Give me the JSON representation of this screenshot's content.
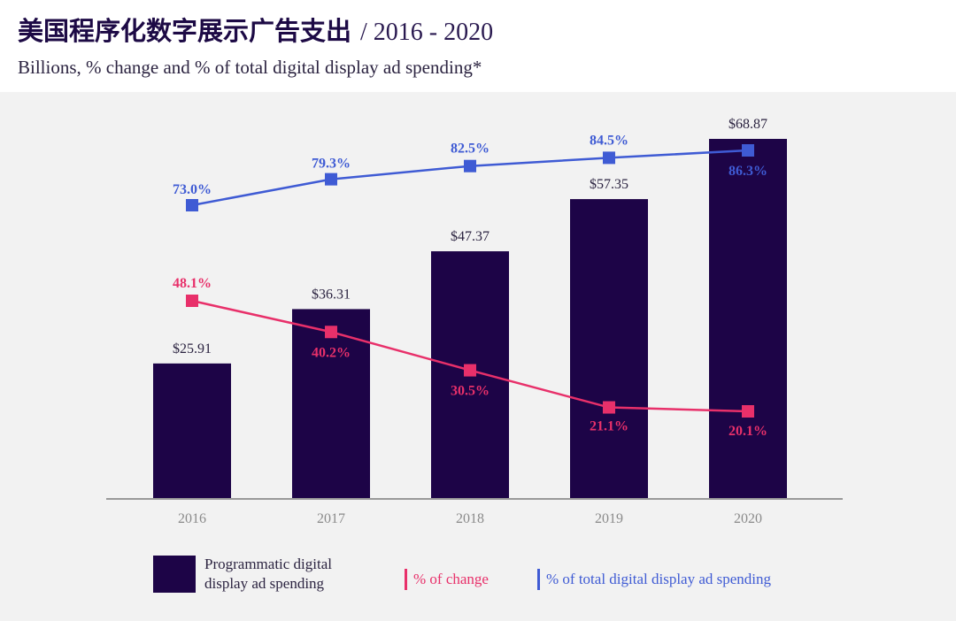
{
  "header": {
    "title": "美国程序化数字展示广告支出",
    "date_range": "/ 2016 - 2020",
    "subtitle": "Billions, % change and % of  total digital display ad spending*"
  },
  "colors": {
    "bar": "#1d0447",
    "change_line": "#e8306a",
    "share_line": "#3f5bd4",
    "axis": "#999999",
    "panel_bg": "#f2f2f2"
  },
  "legend": {
    "bars": "Programmatic digital display ad spending",
    "change": "% of change",
    "share": "% of total digital display ad spending"
  },
  "chart_data": {
    "type": "bar",
    "categories": [
      "2016",
      "2017",
      "2018",
      "2019",
      "2020"
    ],
    "bar_series": {
      "name": "Programmatic digital display ad spending",
      "values": [
        25.91,
        36.31,
        47.37,
        57.35,
        68.87
      ],
      "labels": [
        "$25.91",
        "$36.31",
        "$47.37",
        "$57.35",
        "$68.87"
      ]
    },
    "line_series": [
      {
        "name": "% of change",
        "values": [
          48.1,
          40.2,
          30.5,
          21.1,
          20.1
        ],
        "labels": [
          "48.1%",
          "40.2%",
          "30.5%",
          "21.1%",
          "20.1%"
        ]
      },
      {
        "name": "% of total digital display ad spending",
        "values": [
          73.0,
          79.3,
          82.5,
          84.5,
          86.3
        ],
        "labels": [
          "73.0%",
          "79.3%",
          "82.5%",
          "84.5%",
          "86.3%"
        ]
      }
    ],
    "ylim": [
      0,
      75
    ],
    "grid": false,
    "legend_position": "bottom"
  }
}
